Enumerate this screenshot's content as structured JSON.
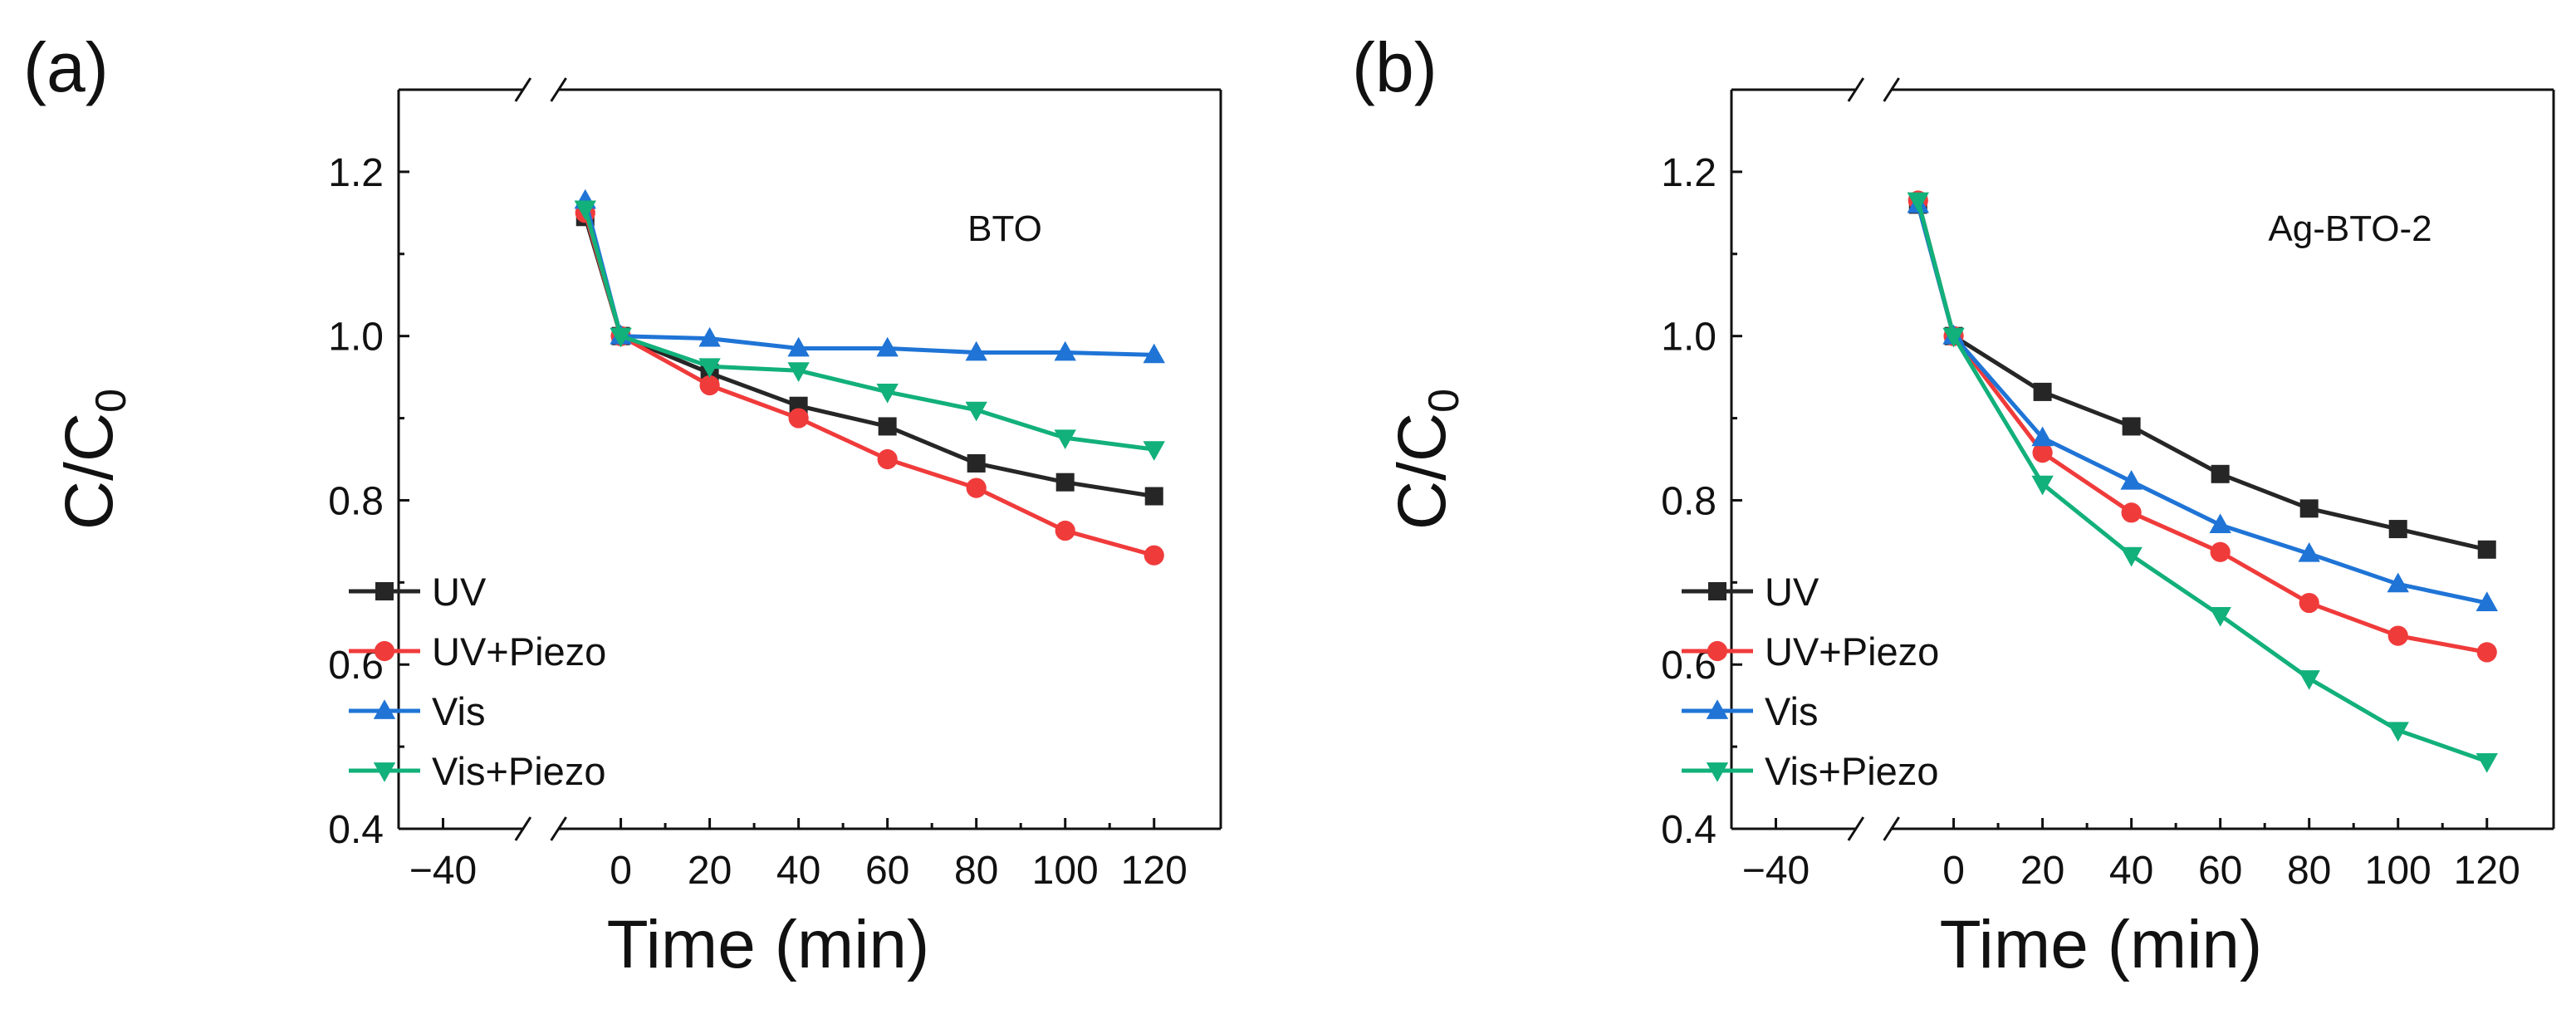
{
  "chart_data": [
    {
      "type": "line",
      "panel_label": "(a)",
      "sample_label": "BTO",
      "xlabel": "Time (min)",
      "ylabel_main": "C/C",
      "ylabel_sub": "0",
      "xlim": [
        -50,
        135
      ],
      "ylim": [
        0.4,
        1.3
      ],
      "x_ticks": [
        -40,
        0,
        20,
        40,
        60,
        80,
        100,
        120
      ],
      "x_tick_labels": [
        "−40",
        "0",
        "20",
        "40",
        "60",
        "80",
        "100",
        "120"
      ],
      "y_ticks": [
        0.4,
        0.6,
        0.8,
        1.0,
        1.2
      ],
      "y_tick_labels": [
        "0.4",
        "0.6",
        "0.8",
        "1.0",
        "1.2"
      ],
      "axis_break": "between -40 and 0",
      "legend_position": "bottom-left",
      "series": [
        {
          "name": "UV",
          "color": "#262626",
          "marker": "square",
          "x": [
            -8,
            0,
            20,
            40,
            60,
            80,
            100,
            120
          ],
          "y": [
            1.145,
            1.0,
            0.955,
            0.915,
            0.89,
            0.845,
            0.822,
            0.805
          ]
        },
        {
          "name": "UV+Piezo",
          "color": "#f03b3b",
          "marker": "circle",
          "x": [
            -8,
            0,
            20,
            40,
            60,
            80,
            100,
            120
          ],
          "y": [
            1.15,
            1.0,
            0.94,
            0.9,
            0.85,
            0.815,
            0.763,
            0.733
          ]
        },
        {
          "name": "Vis",
          "color": "#1f74d6",
          "marker": "triangle-up",
          "x": [
            -8,
            0,
            20,
            40,
            60,
            80,
            100,
            120
          ],
          "y": [
            1.165,
            1.0,
            0.997,
            0.985,
            0.985,
            0.98,
            0.98,
            0.977
          ]
        },
        {
          "name": "Vis+Piezo",
          "color": "#12b07a",
          "marker": "triangle-down",
          "x": [
            -8,
            0,
            20,
            40,
            60,
            80,
            100,
            120
          ],
          "y": [
            1.155,
            1.0,
            0.963,
            0.958,
            0.932,
            0.91,
            0.876,
            0.862
          ]
        }
      ]
    },
    {
      "type": "line",
      "panel_label": "(b)",
      "sample_label": "Ag-BTO-2",
      "xlabel": "Time (min)",
      "ylabel_main": "C/C",
      "ylabel_sub": "0",
      "xlim": [
        -50,
        135
      ],
      "ylim": [
        0.4,
        1.3
      ],
      "x_ticks": [
        -40,
        0,
        20,
        40,
        60,
        80,
        100,
        120
      ],
      "x_tick_labels": [
        "−40",
        "0",
        "20",
        "40",
        "60",
        "80",
        "100",
        "120"
      ],
      "y_ticks": [
        0.4,
        0.6,
        0.8,
        1.0,
        1.2
      ],
      "y_tick_labels": [
        "0.4",
        "0.6",
        "0.8",
        "1.0",
        "1.2"
      ],
      "axis_break": "between -40 and 0",
      "legend_position": "bottom-left",
      "series": [
        {
          "name": "UV",
          "color": "#262626",
          "marker": "square",
          "x": [
            -8,
            0,
            20,
            40,
            60,
            80,
            100,
            120
          ],
          "y": [
            1.16,
            1.0,
            0.932,
            0.89,
            0.832,
            0.79,
            0.765,
            0.74
          ]
        },
        {
          "name": "UV+Piezo",
          "color": "#f03b3b",
          "marker": "circle",
          "x": [
            -8,
            0,
            20,
            40,
            60,
            80,
            100,
            120
          ],
          "y": [
            1.165,
            1.0,
            0.858,
            0.785,
            0.737,
            0.675,
            0.635,
            0.615
          ]
        },
        {
          "name": "Vis",
          "color": "#1f74d6",
          "marker": "triangle-up",
          "x": [
            -8,
            0,
            20,
            40,
            60,
            80,
            100,
            120
          ],
          "y": [
            1.16,
            1.0,
            0.876,
            0.823,
            0.77,
            0.735,
            0.698,
            0.675
          ]
        },
        {
          "name": "Vis+Piezo",
          "color": "#12b07a",
          "marker": "triangle-down",
          "x": [
            -8,
            0,
            20,
            40,
            60,
            80,
            100,
            120
          ],
          "y": [
            1.165,
            1.0,
            0.82,
            0.733,
            0.66,
            0.583,
            0.52,
            0.482
          ]
        }
      ]
    }
  ]
}
